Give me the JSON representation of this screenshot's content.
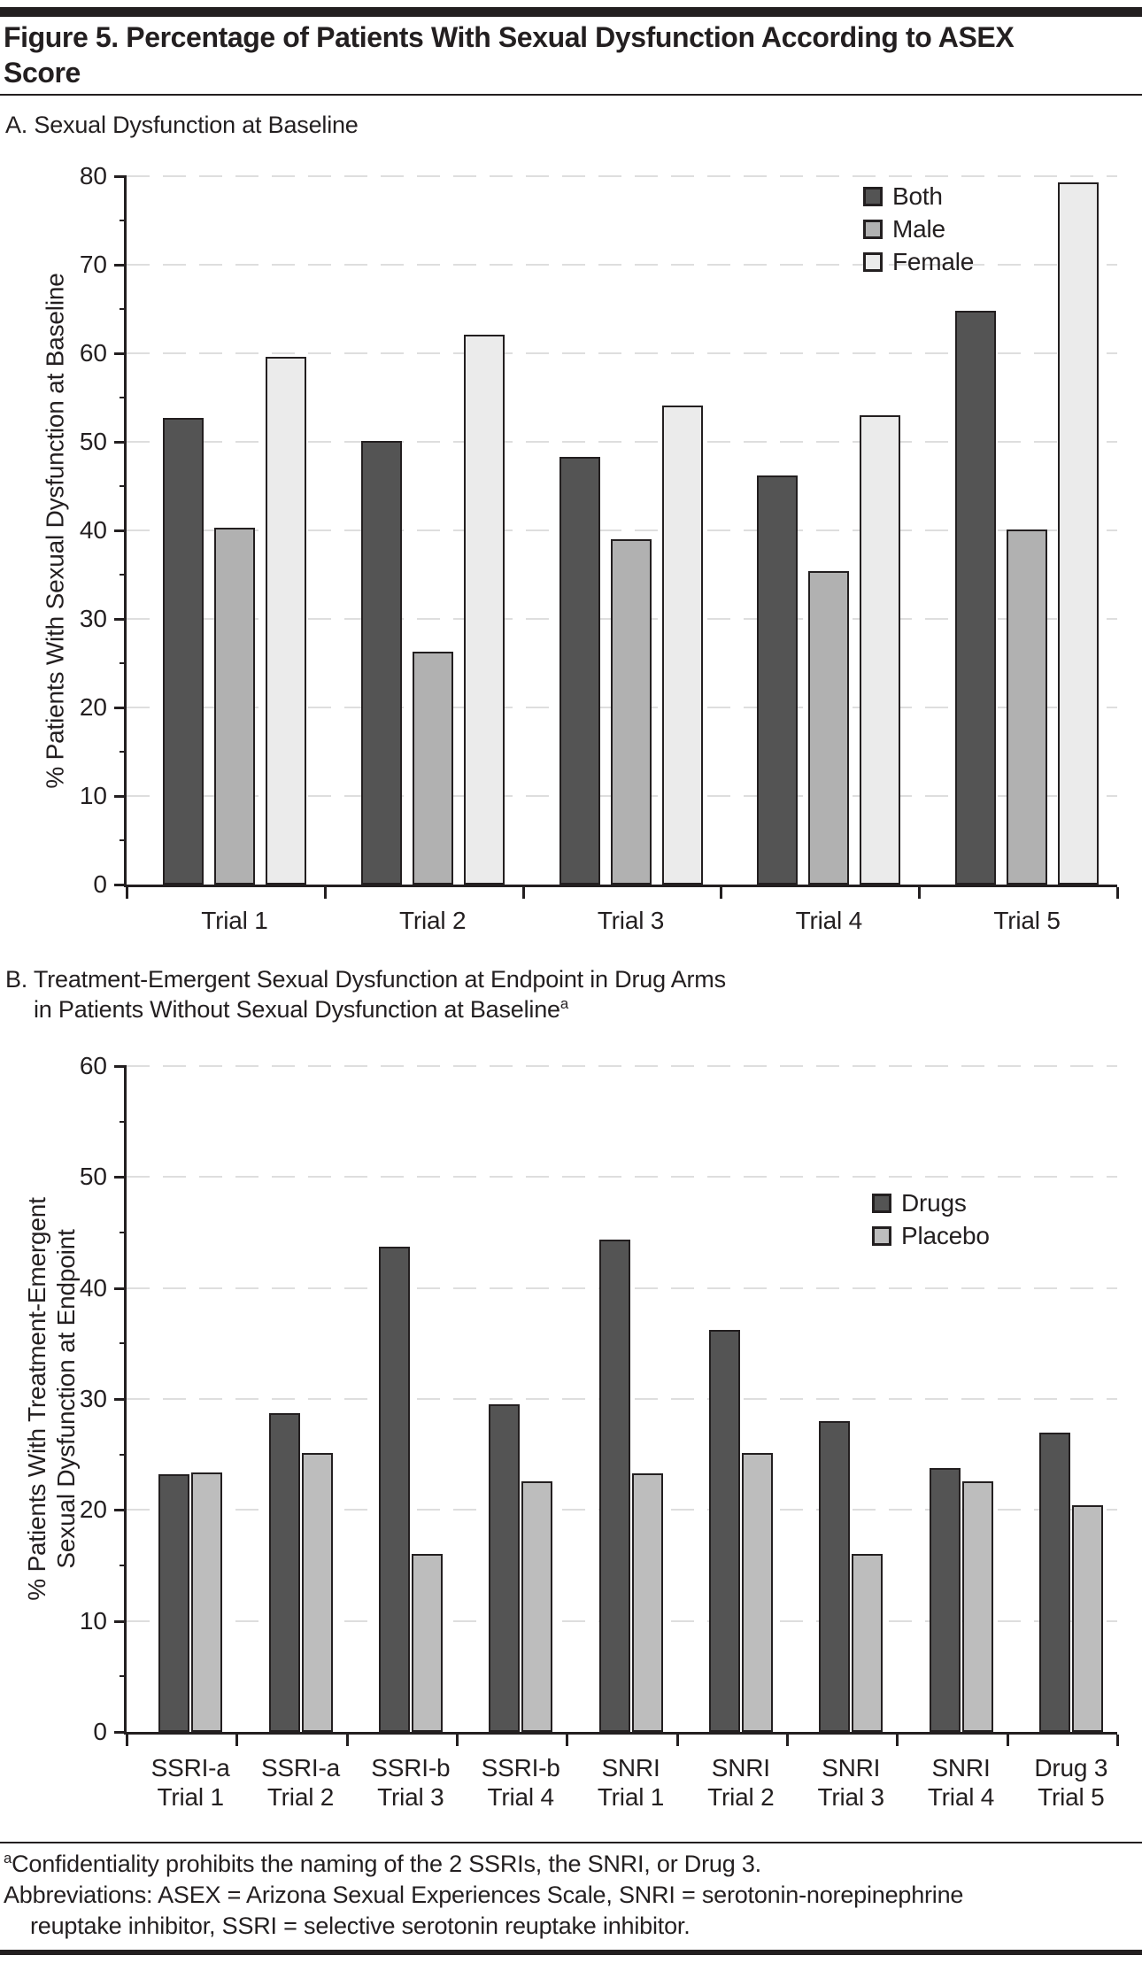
{
  "figure": {
    "title_line1": "Figure 5. Percentage of Patients With Sexual Dysfunction According to ASEX",
    "title_line2": "Score",
    "panel_a_heading": "A. Sexual Dysfunction at Baseline",
    "panel_b_heading_line1": "B. Treatment-Emergent Sexual Dysfunction at Endpoint in Drug Arms",
    "panel_b_heading_line2": "in Patients Without Sexual Dysfunction at Baseline",
    "footnote_marker": "a",
    "footnote_line1": "Confidentiality prohibits the naming of the 2 SSRIs, the SNRI, or Drug 3.",
    "footnote_line2": "Abbreviations: ASEX = Arizona Sexual Experiences Scale, SNRI = serotonin-norepinephrine",
    "footnote_line3": "reuptake inhibitor, SSRI = selective serotonin reuptake inhibitor.",
    "colors": {
      "both_drugs": "#545454",
      "male": "#b1b1b1",
      "female": "#ebebeb",
      "placebo": "#bdbdbd",
      "bar_border": "#231f20",
      "axis": "#231f20",
      "gridline": "#dedede"
    }
  },
  "chart_data": [
    {
      "type": "bar",
      "panel": "A",
      "title": "A. Sexual Dysfunction at Baseline",
      "categories": [
        "Trial 1",
        "Trial 2",
        "Trial 3",
        "Trial 4",
        "Trial 5"
      ],
      "series": [
        {
          "name": "Both",
          "color": "#545454",
          "values": [
            52.7,
            50.1,
            48.3,
            46.2,
            64.8
          ]
        },
        {
          "name": "Male",
          "color": "#b1b1b1",
          "values": [
            40.3,
            26.3,
            39.0,
            35.4,
            40.1
          ]
        },
        {
          "name": "Female",
          "color": "#ebebeb",
          "values": [
            59.6,
            62.1,
            54.1,
            53.0,
            79.3
          ]
        }
      ],
      "xlabel": "",
      "ylabel": "% Patients With Sexual Dysfunction at Baseline",
      "ylim": [
        0,
        80
      ],
      "ytick_step": 10,
      "minor_tick_step": 5,
      "grid": "horizontal-dashed",
      "legend_position": "top-right"
    },
    {
      "type": "bar",
      "panel": "B",
      "title": "B. Treatment-Emergent Sexual Dysfunction at Endpoint in Drug Arms in Patients Without Sexual Dysfunction at Baseline",
      "categories": [
        [
          "SSRI-a",
          "Trial 1"
        ],
        [
          "SSRI-a",
          "Trial 2"
        ],
        [
          "SSRI-b",
          "Trial 3"
        ],
        [
          "SSRI-b",
          "Trial 4"
        ],
        [
          "SNRI",
          "Trial 1"
        ],
        [
          "SNRI",
          "Trial 2"
        ],
        [
          "SNRI",
          "Trial 3"
        ],
        [
          "SNRI",
          "Trial 4"
        ],
        [
          "Drug 3",
          "Trial 5"
        ]
      ],
      "series": [
        {
          "name": "Drugs",
          "color": "#545454",
          "values": [
            23.2,
            28.7,
            43.7,
            29.5,
            44.4,
            36.2,
            28.0,
            23.8,
            27.0
          ]
        },
        {
          "name": "Placebo",
          "color": "#bdbdbd",
          "values": [
            23.4,
            25.1,
            16.0,
            22.6,
            23.3,
            25.1,
            16.0,
            22.6,
            20.4
          ]
        }
      ],
      "xlabel": "",
      "ylabel": [
        "% Patients With Treatment-Emergent",
        "Sexual Dysfunction at Endpoint"
      ],
      "ylim": [
        0,
        60
      ],
      "ytick_step": 10,
      "minor_tick_step": 5,
      "grid": "horizontal-dashed",
      "legend_position": "top-right"
    }
  ]
}
